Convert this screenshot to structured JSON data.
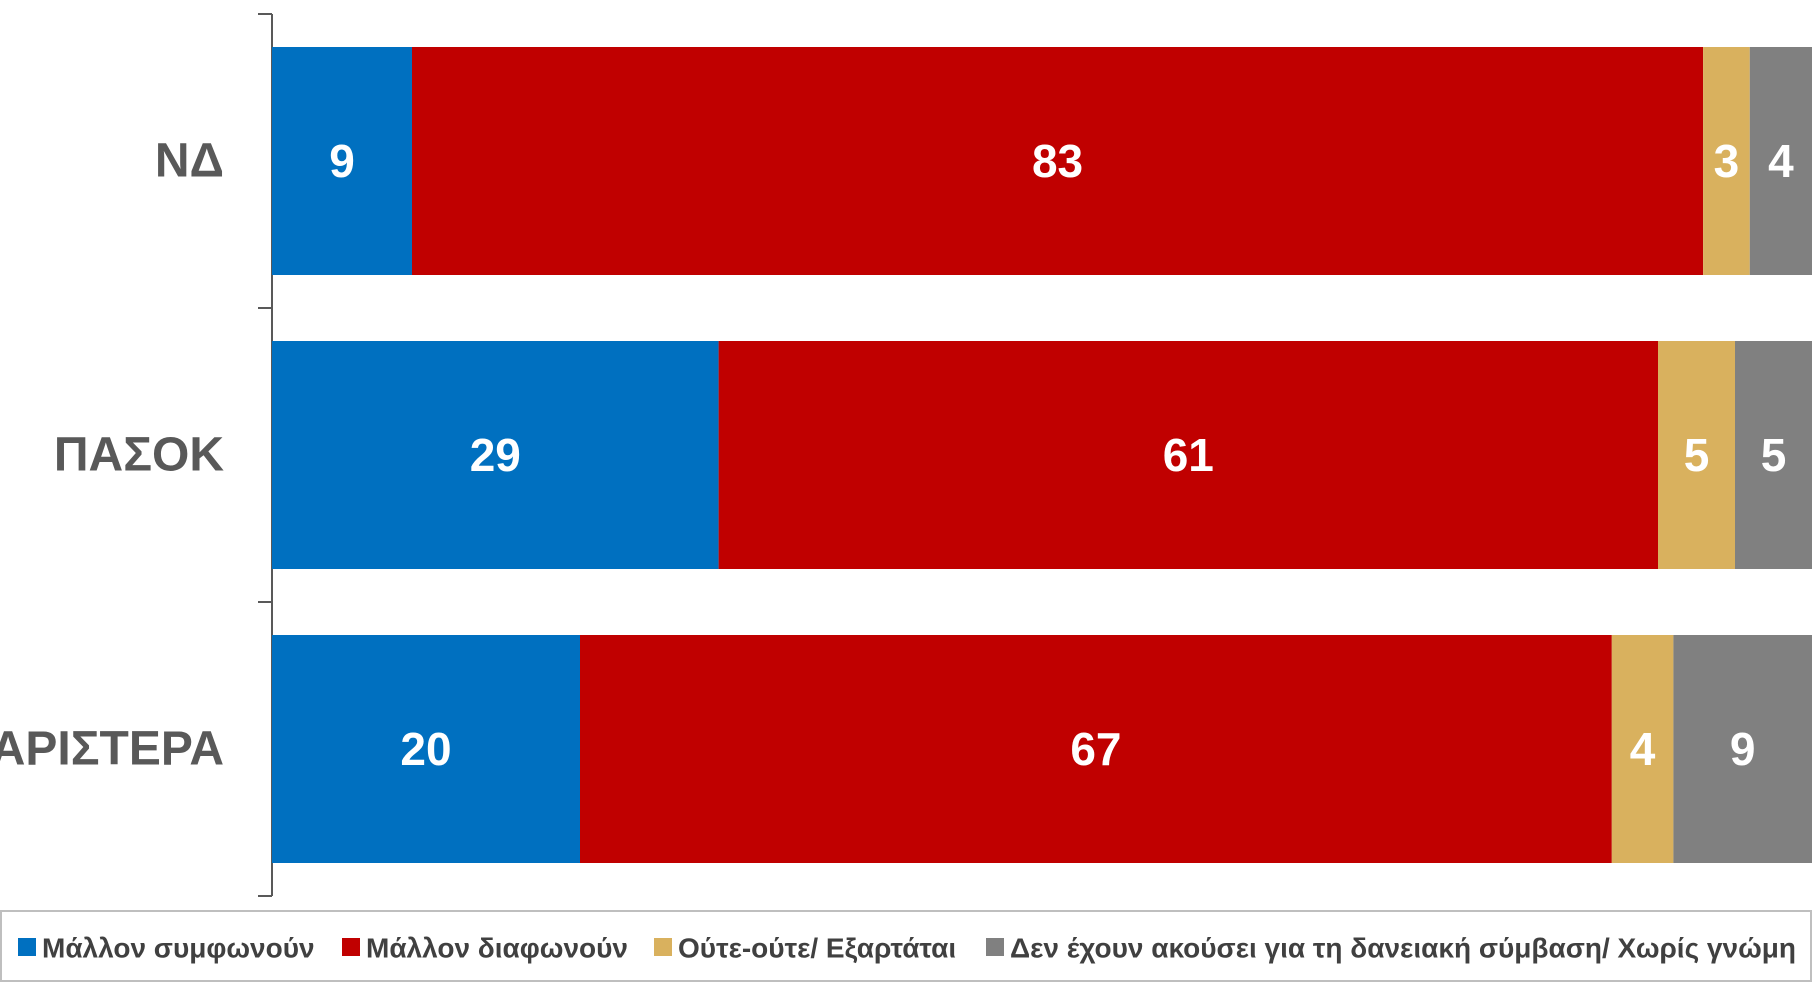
{
  "chart_data": {
    "type": "bar",
    "orientation": "horizontal",
    "stacked": true,
    "title": "",
    "xlabel": "",
    "ylabel": "",
    "categories": [
      "ΝΔ",
      "ΠΑΣΟΚ",
      "ΑΡΙΣΤΕΡΑ"
    ],
    "series": [
      {
        "name": "Μάλλον συμφωνούν",
        "color": "#0070C0",
        "values": [
          9,
          29,
          20
        ]
      },
      {
        "name": "Μάλλον διαφωνούν",
        "color": "#C00000",
        "values": [
          83,
          61,
          67
        ]
      },
      {
        "name": "Ούτε-ούτε/ Εξαρτάται",
        "color": "#D9B15E",
        "values": [
          3,
          5,
          4
        ]
      },
      {
        "name": "Δεν έχουν ακούσει για τη δανειακή σύμβαση/ Χωρίς γνώμη",
        "color": "#808080",
        "values": [
          4,
          5,
          9
        ]
      }
    ],
    "data_labels": true,
    "legend_position": "bottom",
    "grid": false
  }
}
